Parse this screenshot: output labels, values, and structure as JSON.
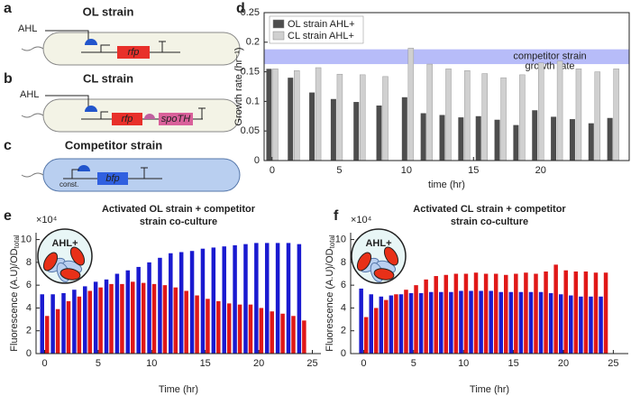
{
  "labels": [
    "a",
    "b",
    "c",
    "d",
    "e",
    "f"
  ],
  "diagrams": {
    "ol": {
      "title": "OL strain",
      "inducer": "AHL",
      "gene": "rfp"
    },
    "cl": {
      "title": "CL strain",
      "inducer": "AHL",
      "gene": "rfp",
      "gene2": "spoTH"
    },
    "competitor": {
      "title": "Competitor strain",
      "promoter": "const.",
      "gene": "bfp"
    }
  },
  "chart_data": [
    {
      "type": "bar",
      "ylabel": "Growth rate (hr⁻¹)",
      "xlabel": "time (hr)",
      "x": [
        0,
        1.6,
        3.2,
        4.8,
        6.5,
        8.2,
        10.1,
        11.5,
        12.9,
        14.3,
        15.6,
        17,
        18.4,
        19.8,
        21.2,
        22.6,
        24,
        25.4
      ],
      "series": [
        {
          "name": "OL strain AHL+",
          "color": "#4d4d4d",
          "values": [
            0.155,
            0.14,
            0.115,
            0.104,
            0.099,
            0.093,
            0.107,
            0.08,
            0.077,
            0.073,
            0.075,
            0.069,
            0.06,
            0.085,
            0.074,
            0.07,
            0.063,
            0.072
          ]
        },
        {
          "name": "CL strain AHL+",
          "color": "#d0d0d0",
          "values": [
            0.155,
            0.152,
            0.157,
            0.146,
            0.145,
            0.142,
            0.19,
            0.163,
            0.155,
            0.152,
            0.147,
            0.14,
            0.145,
            0.165,
            0.168,
            0.155,
            0.15,
            0.155
          ]
        }
      ],
      "band": [
        0.163,
        0.188
      ],
      "band_color": "#9fa6f7",
      "band_label": [
        "competitor strain",
        "growth rate"
      ],
      "xlim": [
        -0.6,
        26.6
      ],
      "xticks": [
        0,
        5,
        10,
        15,
        20
      ],
      "ylim": [
        0,
        0.25
      ],
      "yticks": [
        0,
        0.05,
        0.1,
        0.15,
        0.2,
        0.25
      ],
      "legend": "upper left"
    },
    {
      "type": "bar",
      "title": [
        "Activated OL strain + competitor",
        "strain co-culture"
      ],
      "annotation": "AHL+",
      "xlabel": "Time (hr)",
      "ylabel": "Fluorescence (A.U)/OD",
      "ylabel_sub": "total",
      "multiplier": "×10⁴",
      "x": [
        0,
        1,
        2,
        3,
        4,
        5,
        6,
        7,
        8,
        9,
        10,
        11,
        12,
        13,
        14,
        15,
        16,
        17,
        18,
        19,
        20,
        21,
        22,
        23,
        24
      ],
      "series": [
        {
          "color": "#1a1ad0",
          "values": [
            5.2,
            5.2,
            5.3,
            5.6,
            5.9,
            6.3,
            6.5,
            7.0,
            7.3,
            7.6,
            8.0,
            8.4,
            8.8,
            8.9,
            9.0,
            9.2,
            9.3,
            9.4,
            9.5,
            9.6,
            9.7,
            9.7,
            9.7,
            9.7,
            9.6
          ]
        },
        {
          "color": "#e01818",
          "values": [
            3.3,
            3.9,
            4.6,
            5.0,
            5.5,
            5.8,
            6.1,
            6.1,
            6.3,
            6.2,
            6.1,
            6.0,
            5.8,
            5.5,
            5.1,
            4.8,
            4.6,
            4.4,
            4.3,
            4.3,
            4.0,
            3.7,
            3.5,
            3.3,
            2.9
          ]
        }
      ],
      "xlim": [
        -0.8,
        25.8
      ],
      "xticks": [
        0,
        5,
        10,
        15,
        20,
        25
      ],
      "ylim": [
        0,
        10.6
      ],
      "yticks": [
        0,
        2,
        4,
        6,
        8,
        10
      ]
    },
    {
      "type": "bar",
      "title": [
        "Activated CL strain + competitor",
        "strain co-culture"
      ],
      "annotation": "AHL+",
      "xlabel": "Time (hr)",
      "ylabel": "Fluorescence (A.U)/OD",
      "ylabel_sub": "total",
      "multiplier": "×10⁴",
      "x": [
        0,
        1,
        2,
        3,
        4,
        5,
        6,
        7,
        8,
        9,
        10,
        11,
        12,
        13,
        14,
        15,
        16,
        17,
        18,
        19,
        20,
        21,
        22,
        23,
        24
      ],
      "series": [
        {
          "color": "#1a1ad0",
          "values": [
            5.7,
            5.2,
            5.0,
            5.1,
            5.2,
            5.3,
            5.3,
            5.4,
            5.4,
            5.4,
            5.5,
            5.5,
            5.5,
            5.5,
            5.4,
            5.4,
            5.4,
            5.4,
            5.4,
            5.3,
            5.2,
            5.1,
            5.0,
            5.0,
            5.0
          ]
        },
        {
          "color": "#e01818",
          "values": [
            3.2,
            4.0,
            4.7,
            5.2,
            5.6,
            6.0,
            6.5,
            6.8,
            6.9,
            7.0,
            7.0,
            7.1,
            7.0,
            7.0,
            6.9,
            7.0,
            7.1,
            7.0,
            7.2,
            7.8,
            7.3,
            7.2,
            7.2,
            7.1,
            7.1
          ]
        }
      ],
      "xlim": [
        -1.3,
        26.5
      ],
      "xticks": [
        0,
        5,
        10,
        15,
        20,
        25
      ],
      "ylim": [
        0,
        10.6
      ],
      "yticks": [
        0,
        2,
        4,
        6,
        8,
        10
      ]
    }
  ]
}
